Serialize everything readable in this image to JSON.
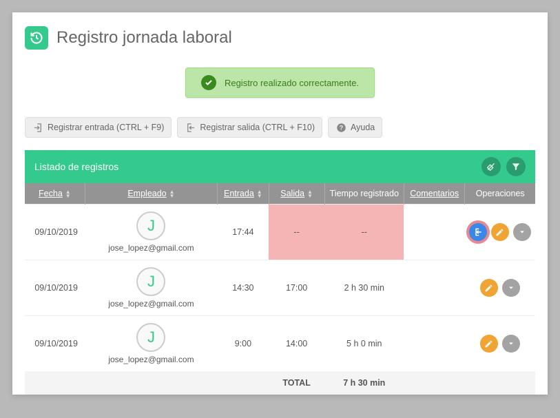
{
  "header": {
    "title": "Registro jornada laboral"
  },
  "alert": {
    "text": "Registro realizado correctamente."
  },
  "toolbar": {
    "btn_entrada": "Registrar entrada (CTRL + F9)",
    "btn_salida": "Registrar salida (CTRL + F10)",
    "btn_ayuda": "Ayuda"
  },
  "panel": {
    "title": "Listado de registros"
  },
  "table": {
    "columns": {
      "fecha": "Fecha",
      "empleado": "Empleado",
      "entrada": "Entrada",
      "salida": "Salida",
      "tiempo": "Tiempo registrado",
      "comentarios": "Comentarios",
      "operaciones": "Operaciones"
    },
    "rows": [
      {
        "fecha": "09/10/2019",
        "empleado_initial": "J",
        "empleado_email": "jose_lopez@gmail.com",
        "entrada": "17:44",
        "salida": "--",
        "tiempo": "--",
        "comentarios": "",
        "missing_exit": true,
        "show_exit_action": true
      },
      {
        "fecha": "09/10/2019",
        "empleado_initial": "J",
        "empleado_email": "jose_lopez@gmail.com",
        "entrada": "14:30",
        "salida": "17:00",
        "tiempo": "2 h 30 min",
        "comentarios": "",
        "missing_exit": false,
        "show_exit_action": false
      },
      {
        "fecha": "09/10/2019",
        "empleado_initial": "J",
        "empleado_email": "jose_lopez@gmail.com",
        "entrada": "9:00",
        "salida": "14:00",
        "tiempo": "5 h 0 min",
        "comentarios": "",
        "missing_exit": false,
        "show_exit_action": false
      }
    ],
    "footer": {
      "total_label": "TOTAL",
      "total_value": "7 h 30 min"
    }
  },
  "colors": {
    "accent": "#35ca8d",
    "alert_bg": "#bce5a8",
    "alert_border": "#a3d884",
    "alert_check_bg": "#3b8a1f",
    "alert_text": "#3b7a20",
    "th_bg": "#949494",
    "missing_bg": "#f6b5b5",
    "op_blue": "#3a87e6",
    "op_orange": "#f0a433",
    "op_grey": "#a3a3a3",
    "background": "#b9b9b9"
  }
}
